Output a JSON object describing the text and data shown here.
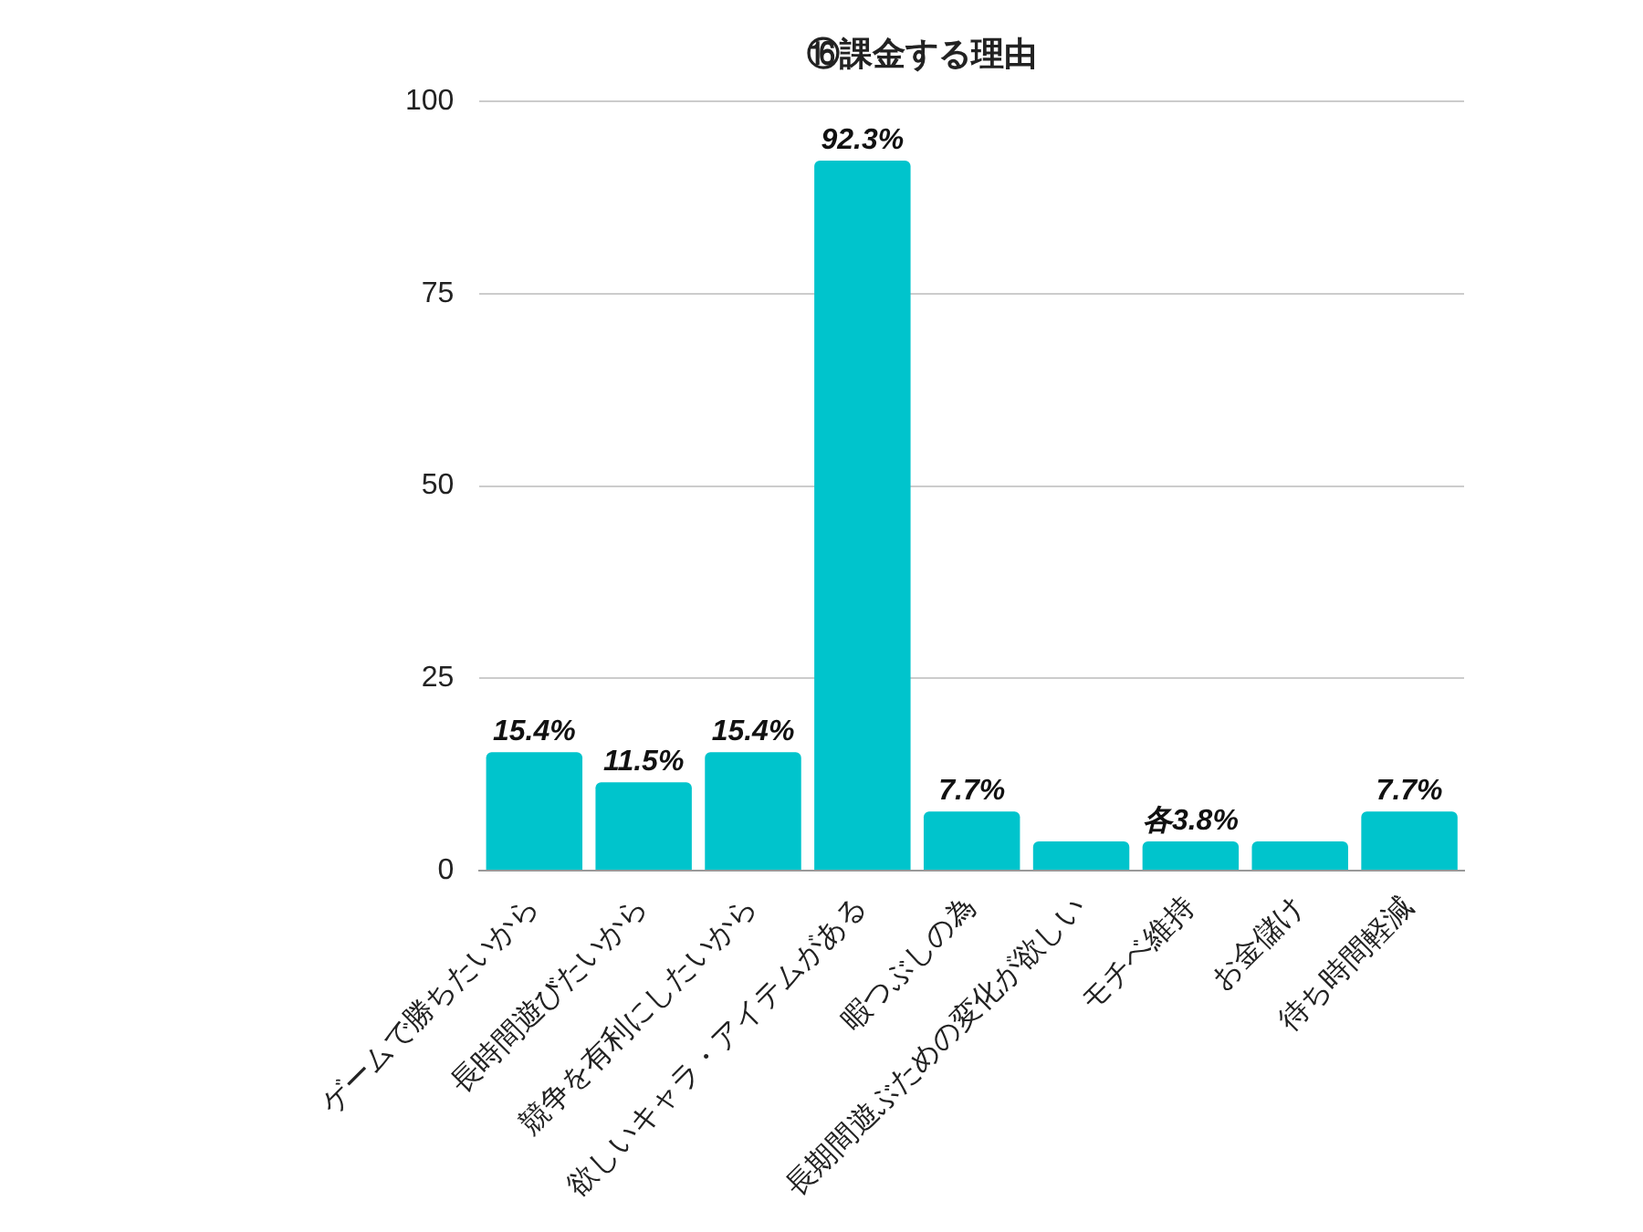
{
  "chart_data": {
    "type": "bar",
    "title": "⑯課金する理由",
    "categories": [
      "ゲームで勝ちたいから",
      "長時間遊びたいから",
      "競争を有利にしたいから",
      "欲しいキャラ・アイテムがある",
      "暇つぶしの為",
      "長期間遊ぶための変化が欲しい",
      "モチベ維持",
      "お金儲け",
      "待ち時間軽減"
    ],
    "values": [
      15.4,
      11.5,
      15.4,
      92.3,
      7.7,
      3.8,
      3.8,
      3.8,
      7.7
    ],
    "value_labels": [
      "15.4%",
      "11.5%",
      "15.4%",
      "92.3%",
      "7.7%",
      null,
      "各3.8%",
      null,
      "7.7%"
    ],
    "color": "#00c4cc",
    "ylim": [
      0,
      100
    ],
    "yticks": [
      0,
      25,
      50,
      75,
      100
    ],
    "grid": "y",
    "legend": false
  }
}
